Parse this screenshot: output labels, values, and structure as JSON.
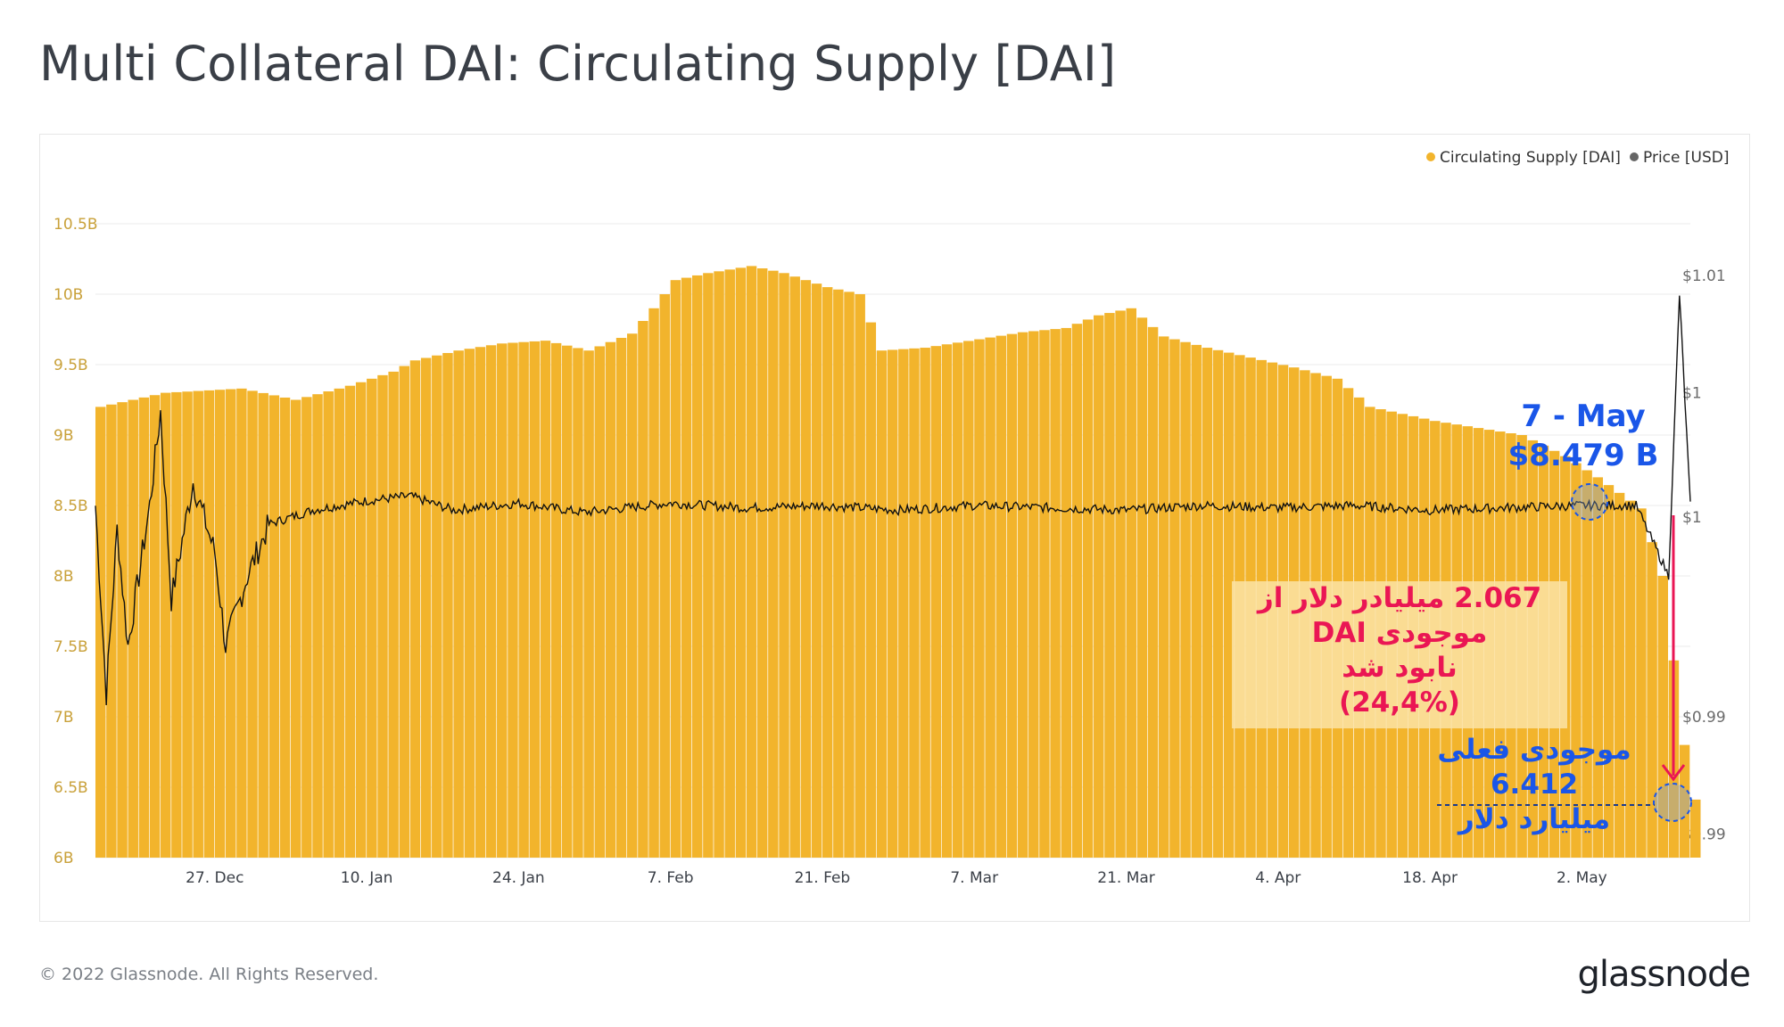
{
  "page": {
    "title": "Multi Collateral DAI: Circulating Supply [DAI]",
    "copyright": "© 2022 Glassnode. All Rights Reserved.",
    "brand": "glassnode"
  },
  "colors": {
    "supply": "#f2b42c",
    "price": "#111111",
    "accent_blue": "#1a56e8",
    "accent_red": "#ea1654",
    "axis_text_left": "#c9a13a",
    "axis_text_right": "#6b6b6b"
  },
  "annotations": {
    "date_line1": "7 - May",
    "date_line2": "$8.479 B",
    "loss_line1": "2.067 میلیادر  دلار از",
    "loss_line2": "موجودی DAI",
    "loss_line3": "نابود شد",
    "loss_line4": "(24,4%)",
    "current_line1": "موجودی فعلی",
    "current_line2": "6.412",
    "current_line3": "میلیارد دلار"
  },
  "chart_data": {
    "type": "bar",
    "title": "Multi Collateral DAI: Circulating Supply [DAI]",
    "legend_position": "top-right",
    "grid": true,
    "x_ticks": [
      "27. Dec",
      "10. Jan",
      "24. Jan",
      "7. Feb",
      "21. Feb",
      "7. Mar",
      "21. Mar",
      "4. Apr",
      "18. Apr",
      "2. May"
    ],
    "x_range": [
      "2021-12-16",
      "2022-05-12"
    ],
    "y_left": {
      "ticks": [
        "6B",
        "6.5B",
        "7B",
        "7.5B",
        "8B",
        "8.5B",
        "9B",
        "9.5B",
        "10B",
        "10.5B"
      ],
      "ylim": [
        6.0,
        10.5
      ]
    },
    "y_right": {
      "ticks": [
        "$0.99",
        "$0.99",
        "$1",
        "$1",
        "$1.01"
      ],
      "ylim": [
        0.985,
        1.012
      ]
    },
    "series": [
      {
        "name": "Circulating Supply [DAI]",
        "type": "bar",
        "axis": "left",
        "points": [
          [
            "2021-12-16",
            9.2
          ],
          [
            "2021-12-22",
            9.3
          ],
          [
            "2021-12-29",
            9.33
          ],
          [
            "2022-01-03",
            9.25
          ],
          [
            "2022-01-08",
            9.35
          ],
          [
            "2022-01-12",
            9.45
          ],
          [
            "2022-01-14",
            9.53
          ],
          [
            "2022-01-18",
            9.6
          ],
          [
            "2022-01-22",
            9.65
          ],
          [
            "2022-01-26",
            9.67
          ],
          [
            "2022-01-30",
            9.6
          ],
          [
            "2022-02-03",
            9.72
          ],
          [
            "2022-02-05",
            9.9
          ],
          [
            "2022-02-07",
            10.1
          ],
          [
            "2022-02-10",
            10.15
          ],
          [
            "2022-02-14",
            10.2
          ],
          [
            "2022-02-17",
            10.15
          ],
          [
            "2022-02-21",
            10.05
          ],
          [
            "2022-02-24",
            10.0
          ],
          [
            "2022-02-26",
            9.6
          ],
          [
            "2022-03-02",
            9.62
          ],
          [
            "2022-03-07",
            9.68
          ],
          [
            "2022-03-11",
            9.73
          ],
          [
            "2022-03-15",
            9.76
          ],
          [
            "2022-03-18",
            9.85
          ],
          [
            "2022-03-21",
            9.9
          ],
          [
            "2022-03-24",
            9.7
          ],
          [
            "2022-03-28",
            9.62
          ],
          [
            "2022-04-01",
            9.55
          ],
          [
            "2022-04-05",
            9.48
          ],
          [
            "2022-04-09",
            9.4
          ],
          [
            "2022-04-12",
            9.2
          ],
          [
            "2022-04-18",
            9.1
          ],
          [
            "2022-04-22",
            9.05
          ],
          [
            "2022-04-26",
            9.0
          ],
          [
            "2022-04-30",
            8.85
          ],
          [
            "2022-05-03",
            8.7
          ],
          [
            "2022-05-07",
            8.479
          ],
          [
            "2022-05-09",
            8.0
          ],
          [
            "2022-05-10",
            7.4
          ],
          [
            "2022-05-11",
            6.8
          ],
          [
            "2022-05-12",
            6.412
          ]
        ]
      },
      {
        "name": "Price [USD]",
        "type": "line",
        "axis": "right",
        "points": [
          [
            "2021-12-16",
            1.0
          ],
          [
            "2021-12-17",
            0.992
          ],
          [
            "2021-12-18",
            0.999
          ],
          [
            "2021-12-19",
            0.994
          ],
          [
            "2021-12-21",
            1.0
          ],
          [
            "2021-12-22",
            1.004
          ],
          [
            "2021-12-23",
            0.996
          ],
          [
            "2021-12-25",
            1.001
          ],
          [
            "2021-12-27",
            0.998
          ],
          [
            "2021-12-28",
            0.994
          ],
          [
            "2021-12-30",
            0.997
          ],
          [
            "2022-01-01",
            0.9992
          ],
          [
            "2022-01-05",
            0.9998
          ],
          [
            "2022-01-10",
            1.0002
          ],
          [
            "2022-01-14",
            1.0004
          ],
          [
            "2022-01-18",
            0.9998
          ],
          [
            "2022-01-24",
            1.0001
          ],
          [
            "2022-01-30",
            0.9997
          ],
          [
            "2022-02-07",
            1.0001
          ],
          [
            "2022-02-14",
            0.9999
          ],
          [
            "2022-02-21",
            1.0
          ],
          [
            "2022-02-28",
            0.9998
          ],
          [
            "2022-03-07",
            1.0
          ],
          [
            "2022-03-14",
            0.9999
          ],
          [
            "2022-03-21",
            0.9998
          ],
          [
            "2022-03-28",
            1.0
          ],
          [
            "2022-04-04",
            0.9999
          ],
          [
            "2022-04-11",
            1.0
          ],
          [
            "2022-04-18",
            0.9998
          ],
          [
            "2022-04-25",
            0.9999
          ],
          [
            "2022-05-02",
            1.0
          ],
          [
            "2022-05-07",
            1.0
          ],
          [
            "2022-05-09",
            0.998
          ],
          [
            "2022-05-10",
            0.997
          ],
          [
            "2022-05-11",
            1.009
          ],
          [
            "2022-05-12",
            1.0
          ]
        ]
      }
    ]
  }
}
